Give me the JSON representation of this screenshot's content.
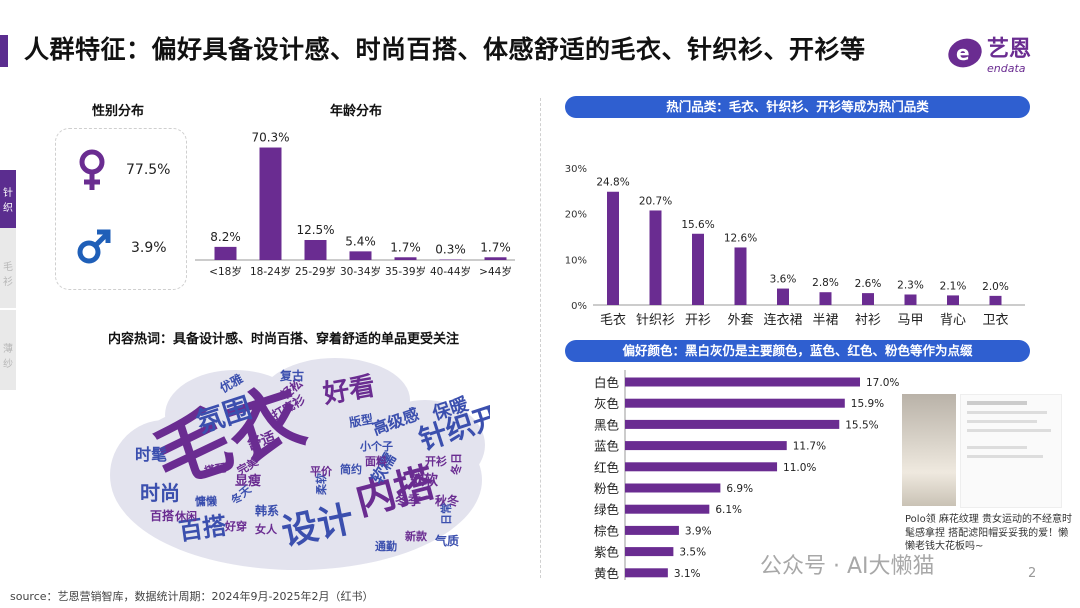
{
  "header": {
    "title": "人群特征：偏好具备设计感、时尚百搭、体感舒适的毛衣、针织衫、开衫等",
    "logo_cn": "艺恩",
    "logo_en": "endata"
  },
  "side_tabs": [
    "针织",
    "毛衫",
    "薄纱"
  ],
  "gender": {
    "heading": "性别分布",
    "female_pct": "77.5%",
    "male_pct": "3.9%",
    "female_color": "#6a2c91",
    "male_color": "#1f5fb8"
  },
  "wordcloud": {
    "heading": "内容热词：具备设计感、时尚百搭、穿着舒适的单品更受关注",
    "words": [
      "毛衣",
      "内搭",
      "设计",
      "针织开衫",
      "氛围",
      "好看",
      "时髦",
      "时尚",
      "百搭",
      "保暖",
      "高级感",
      "舒适",
      "软糯",
      "软软",
      "冬季",
      "显瘦",
      "秋冬",
      "韩系",
      "百搭",
      "打底衫",
      "轻松",
      "优雅",
      "复古",
      "版型",
      "日常",
      "新款",
      "休闲",
      "气质",
      "冬天",
      "完美",
      "慵懒",
      "面料",
      "柔软",
      "开衫",
      "女人",
      "冬日",
      "小个子",
      "平价",
      "搭配",
      "简约",
      "好穿",
      "通勤"
    ]
  },
  "source": "source：艺恩营销智库，数据统计周期：2024年9月-2025年2月（红书）",
  "watermark": "公众号 · AI大懒猫",
  "page_number": "2",
  "note": {
    "caption": "Polo领  麻花纹理 贵女运动的不经意时髦感拿捏 搭配滤阳帽妥妥我的爱！懒懒老钱大花板吗~"
  },
  "chart_data": [
    {
      "type": "bar",
      "title": "年龄分布",
      "categories": [
        "<18岁",
        "18-24岁",
        "25-29岁",
        "30-34岁",
        "35-39岁",
        "40-44岁",
        ">44岁"
      ],
      "values": [
        8.2,
        70.3,
        12.5,
        5.4,
        1.7,
        0.3,
        1.7
      ],
      "labels": [
        "8.2%",
        "70.3%",
        "12.5%",
        "5.4%",
        "1.7%",
        "0.3%",
        "1.7%"
      ],
      "ylim": [
        0,
        75
      ],
      "color": "#6a2c91"
    },
    {
      "type": "bar",
      "title": "热门品类：毛衣、针织衫、开衫等成为热门品类",
      "categories": [
        "毛衣",
        "针织衫",
        "开衫",
        "外套",
        "连衣裙",
        "半裙",
        "衬衫",
        "马甲",
        "背心",
        "卫衣"
      ],
      "values": [
        24.8,
        20.7,
        15.6,
        12.6,
        3.6,
        2.8,
        2.6,
        2.3,
        2.1,
        2.0
      ],
      "labels": [
        "24.8%",
        "20.7%",
        "15.6%",
        "12.6%",
        "3.6%",
        "2.8%",
        "2.6%",
        "2.3%",
        "2.1%",
        "2.0%"
      ],
      "yticks": [
        "0%",
        "10%",
        "20%",
        "30%"
      ],
      "ylim": [
        0,
        30
      ],
      "color": "#6a2c91"
    },
    {
      "type": "bar",
      "orientation": "horizontal",
      "title": "偏好颜色：黑白灰仍是主要颜色，蓝色、红色、粉色等作为点缀",
      "categories": [
        "白色",
        "灰色",
        "黑色",
        "蓝色",
        "红色",
        "粉色",
        "绿色",
        "棕色",
        "紫色",
        "黄色"
      ],
      "values": [
        17.0,
        15.9,
        15.5,
        11.7,
        11.0,
        6.9,
        6.1,
        3.9,
        3.5,
        3.1
      ],
      "labels": [
        "17.0%",
        "15.9%",
        "15.5%",
        "11.7%",
        "11.0%",
        "6.9%",
        "6.1%",
        "3.9%",
        "3.5%",
        "3.1%"
      ],
      "xlim": [
        0,
        17
      ],
      "color": "#6a2c91"
    }
  ]
}
